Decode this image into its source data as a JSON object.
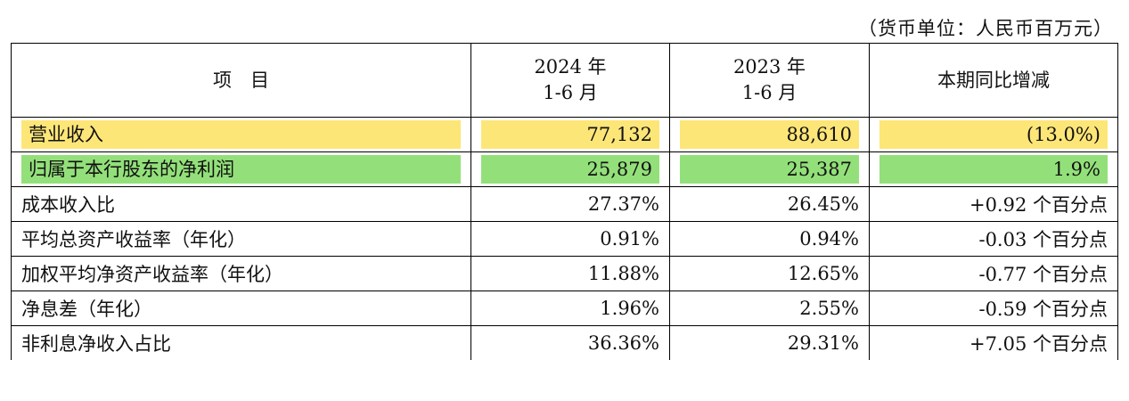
{
  "unit_note": "（货币单位：人民币百万元）",
  "table": {
    "headers": {
      "item": "项　目",
      "col2023": {
        "line1": "2024 年",
        "line2": "1-6 月"
      },
      "col2022": {
        "line1": "2023 年",
        "line2": "1-6 月"
      },
      "change": "本期同比增减"
    },
    "highlight_colors": {
      "yellow": "#fde678",
      "green": "#93e07a"
    },
    "rows": [
      {
        "label": "营业收入",
        "v1": "77,132",
        "v2": "88,610",
        "change": "(13.0%)",
        "highlight": "yellow"
      },
      {
        "label": "归属于本行股东的净利润",
        "v1": "25,879",
        "v2": "25,387",
        "change": "1.9%",
        "highlight": "green"
      },
      {
        "label": "成本收入比",
        "v1": "27.37%",
        "v2": "26.45%",
        "change": "+0.92 个百分点"
      },
      {
        "label": "平均总资产收益率（年化）",
        "v1": "0.91%",
        "v2": "0.94%",
        "change": "-0.03 个百分点"
      },
      {
        "label": "加权平均净资产收益率（年化）",
        "v1": "11.88%",
        "v2": "12.65%",
        "change": "-0.77 个百分点"
      },
      {
        "label": "净息差（年化）",
        "v1": "1.96%",
        "v2": "2.55%",
        "change": "-0.59 个百分点"
      },
      {
        "label": "非利息净收入占比",
        "v1": "36.36%",
        "v2": "29.31%",
        "change": "+7.05 个百分点"
      }
    ]
  }
}
